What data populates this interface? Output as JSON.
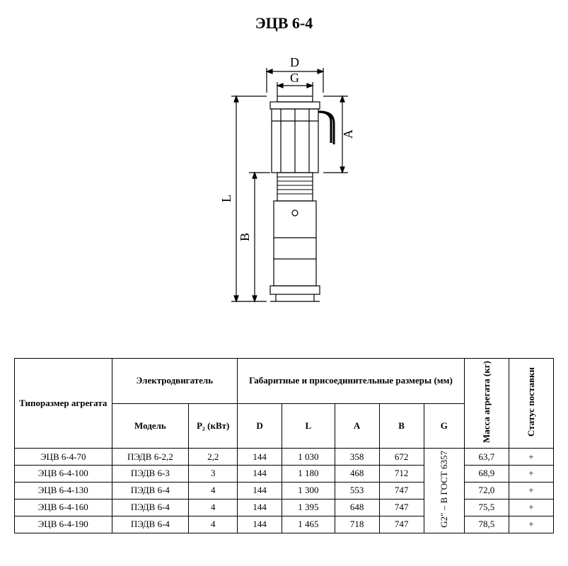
{
  "title": "ЭЦВ 6-4",
  "diagram": {
    "labels": {
      "D": "D",
      "G": "G",
      "A": "A",
      "L": "L",
      "B": "B"
    },
    "stroke": "#000000",
    "fill": "#ffffff",
    "font_size": 18
  },
  "table": {
    "headers": {
      "type_size": "Типоразмер агрегата",
      "motor_group": "Электродвигатель",
      "model": "Модель",
      "power": "P₂ (кВт)",
      "dims_group": "Габаритные и присоединительные размеры (мм)",
      "D": "D",
      "L": "L",
      "A": "A",
      "B": "B",
      "G": "G",
      "mass": "Масса агрегата (кг)",
      "status": "Статус поставки"
    },
    "g_value": "G2\" – B ГОСТ 6357",
    "rows": [
      {
        "type": "ЭЦВ 6-4-70",
        "model": "ПЭДВ 6-2,2",
        "p2": "2,2",
        "D": "144",
        "L": "1 030",
        "A": "358",
        "B": "672",
        "mass": "63,7",
        "status": "+"
      },
      {
        "type": "ЭЦВ 6-4-100",
        "model": "ПЭДВ 6-3",
        "p2": "3",
        "D": "144",
        "L": "1 180",
        "A": "468",
        "B": "712",
        "mass": "68,9",
        "status": "+"
      },
      {
        "type": "ЭЦВ 6-4-130",
        "model": "ПЭДВ 6-4",
        "p2": "4",
        "D": "144",
        "L": "1 300",
        "A": "553",
        "B": "747",
        "mass": "72,0",
        "status": "+"
      },
      {
        "type": "ЭЦВ 6-4-160",
        "model": "ПЭДВ 6-4",
        "p2": "4",
        "D": "144",
        "L": "1 395",
        "A": "648",
        "B": "747",
        "mass": "75,5",
        "status": "+"
      },
      {
        "type": "ЭЦВ 6-4-190",
        "model": "ПЭДВ 6-4",
        "p2": "4",
        "D": "144",
        "L": "1 465",
        "A": "718",
        "B": "747",
        "mass": "78,5",
        "status": "+"
      }
    ],
    "col_widths": {
      "type": 120,
      "model": 95,
      "p2": 60,
      "D": 55,
      "L": 65,
      "A": 55,
      "B": 55,
      "G": 50,
      "mass": 55,
      "status": 55
    }
  }
}
